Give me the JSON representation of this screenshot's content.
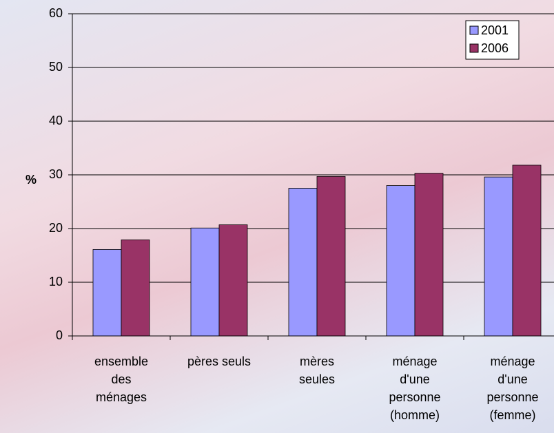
{
  "chart_data": {
    "type": "bar",
    "y_label": "%",
    "categories": [
      "ensemble des ménages",
      "pères seuls",
      "mères seules",
      "ménage d'une personne (homme)",
      "ménage d'une personne (femme)"
    ],
    "series": [
      {
        "name": "2001",
        "color": "#9999ff",
        "values": [
          16.1,
          20.1,
          27.5,
          28,
          29.6
        ]
      },
      {
        "name": "2006",
        "color": "#993366",
        "values": [
          17.9,
          20.7,
          29.7,
          30.3,
          31.8
        ]
      }
    ],
    "ylim": [
      0,
      60
    ],
    "yticks": [
      0,
      10,
      20,
      30,
      40,
      50,
      60
    ],
    "grid": true,
    "legend": "top-right"
  }
}
